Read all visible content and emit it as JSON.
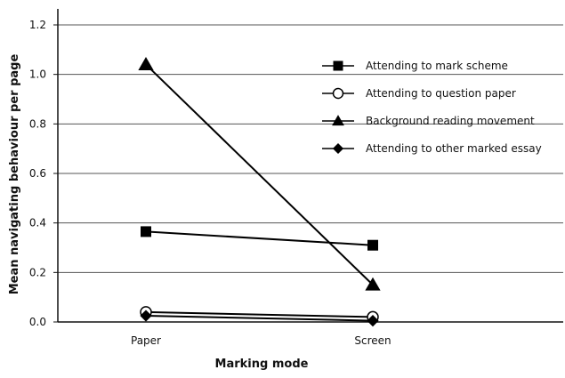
{
  "chart_data": {
    "type": "line",
    "title": "",
    "xlabel": "Marking mode",
    "ylabel": "Mean navigating behaviour per page",
    "categories": [
      "Paper",
      "Screen"
    ],
    "ylim": [
      0,
      1.2
    ],
    "yticks": [
      "0.0",
      "0.2",
      "0.4",
      "0.6",
      "0.8",
      "1.0",
      "1.2"
    ],
    "grid": "horizontal",
    "legend_position": "top-right",
    "series": [
      {
        "name": "Attending to mark scheme",
        "marker": "square",
        "values": [
          0.365,
          0.31
        ]
      },
      {
        "name": "Attending to question paper",
        "marker": "circle-open",
        "values": [
          0.04,
          0.02
        ]
      },
      {
        "name": "Background reading movement",
        "marker": "triangle",
        "values": [
          1.04,
          0.15
        ]
      },
      {
        "name": "Attending to other marked essay",
        "marker": "diamond",
        "values": [
          0.025,
          0.005
        ]
      }
    ]
  }
}
